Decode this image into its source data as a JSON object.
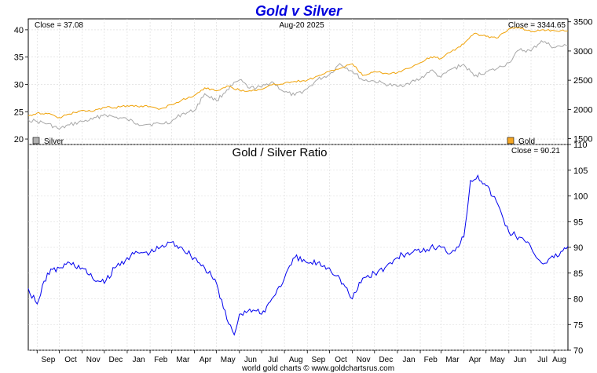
{
  "chart_data": [
    {
      "type": "line",
      "title": "Gold v Silver",
      "date_label": "Aug-20  2025",
      "left_close_label": "Close = 37.08",
      "right_close_label": "Close = 3344.65",
      "left_axis": {
        "ticks": [
          20,
          25,
          30,
          35,
          40
        ],
        "ylim": [
          19,
          42
        ]
      },
      "right_axis": {
        "ticks": [
          1500,
          2000,
          2500,
          3000,
          3500
        ],
        "ylim": [
          1400,
          3550
        ]
      },
      "grid": true,
      "legend": [
        {
          "name": "Silver",
          "color": "#b0b0b0",
          "position": "bottom-left"
        },
        {
          "name": "Gold",
          "color": "#f5a623",
          "position": "bottom-right"
        }
      ],
      "series": [
        {
          "name": "Silver",
          "axis": "left",
          "color": "#a8a8a8",
          "x": [
            "2023-08-20",
            "2023-09-01",
            "2023-09-15",
            "2023-10-01",
            "2023-10-15",
            "2023-11-01",
            "2023-11-15",
            "2023-12-01",
            "2023-12-15",
            "2024-01-01",
            "2024-01-15",
            "2024-02-01",
            "2024-02-15",
            "2024-03-01",
            "2024-03-15",
            "2024-04-01",
            "2024-04-15",
            "2024-05-01",
            "2024-05-15",
            "2024-06-01",
            "2024-06-15",
            "2024-07-01",
            "2024-07-15",
            "2024-08-01",
            "2024-08-15",
            "2024-09-01",
            "2024-09-15",
            "2024-10-01",
            "2024-10-15",
            "2024-11-01",
            "2024-11-15",
            "2024-12-01",
            "2024-12-15",
            "2025-01-01",
            "2025-01-15",
            "2025-02-01",
            "2025-02-15",
            "2025-03-01",
            "2025-03-15",
            "2025-04-01",
            "2025-04-15",
            "2025-05-01",
            "2025-05-15",
            "2025-06-01",
            "2025-06-15",
            "2025-07-01",
            "2025-07-15",
            "2025-08-01",
            "2025-08-20"
          ],
          "values": [
            23.5,
            23.2,
            22.8,
            21.8,
            22.6,
            23.2,
            23.6,
            24.5,
            24.0,
            23.6,
            22.8,
            22.7,
            22.8,
            23.2,
            24.6,
            25.2,
            28.3,
            27.0,
            29.0,
            30.8,
            29.3,
            29.5,
            30.5,
            28.6,
            28.0,
            29.2,
            30.9,
            31.8,
            33.8,
            32.4,
            30.8,
            30.6,
            30.1,
            29.6,
            30.2,
            31.0,
            32.6,
            31.3,
            32.8,
            33.6,
            31.5,
            32.3,
            32.8,
            34.0,
            36.3,
            36.1,
            38.0,
            36.8,
            37.08
          ]
        },
        {
          "name": "Gold",
          "axis": "right",
          "color": "#f0a30a",
          "x": [
            "2023-08-20",
            "2023-09-01",
            "2023-09-15",
            "2023-10-01",
            "2023-10-15",
            "2023-11-01",
            "2023-11-15",
            "2023-12-01",
            "2023-12-15",
            "2024-01-01",
            "2024-01-15",
            "2024-02-01",
            "2024-02-15",
            "2024-03-01",
            "2024-03-15",
            "2024-04-01",
            "2024-04-15",
            "2024-05-01",
            "2024-05-15",
            "2024-06-01",
            "2024-06-15",
            "2024-07-01",
            "2024-07-15",
            "2024-08-01",
            "2024-08-15",
            "2024-09-01",
            "2024-09-15",
            "2024-10-01",
            "2024-10-15",
            "2024-11-01",
            "2024-11-15",
            "2024-12-01",
            "2024-12-15",
            "2025-01-01",
            "2025-01-15",
            "2025-02-01",
            "2025-02-15",
            "2025-03-01",
            "2025-03-15",
            "2025-04-01",
            "2025-04-15",
            "2025-05-01",
            "2025-05-15",
            "2025-06-01",
            "2025-06-15",
            "2025-07-01",
            "2025-07-15",
            "2025-08-01",
            "2025-08-20"
          ],
          "values": [
            1890,
            1940,
            1925,
            1860,
            1920,
            1985,
            1965,
            2035,
            2030,
            2065,
            2050,
            2050,
            2010,
            2080,
            2160,
            2240,
            2370,
            2320,
            2400,
            2330,
            2320,
            2340,
            2420,
            2450,
            2480,
            2500,
            2570,
            2650,
            2700,
            2780,
            2580,
            2650,
            2620,
            2630,
            2700,
            2800,
            2900,
            2870,
            2990,
            3120,
            3300,
            3250,
            3220,
            3380,
            3400,
            3330,
            3360,
            3350,
            3344.65
          ]
        }
      ]
    },
    {
      "type": "line",
      "title": "Gold  /  Silver Ratio",
      "close_label": "Close = 90.21",
      "y_axis": {
        "ticks": [
          70,
          75,
          80,
          85,
          90,
          95,
          100,
          105,
          110
        ],
        "ylim": [
          70,
          110
        ]
      },
      "x_axis": {
        "ticks": [
          "Sep",
          "Oct",
          "Nov",
          "Dec",
          "Jan",
          "Feb",
          "Mar",
          "Apr",
          "May",
          "Jun",
          "Jul",
          "Aug",
          "Sep",
          "Oct",
          "Nov",
          "Dec",
          "Jan",
          "Feb",
          "Mar",
          "Apr",
          "May",
          "Jun",
          "Jul",
          "Aug"
        ]
      },
      "grid": true,
      "series": [
        {
          "name": "Gold / Silver Ratio",
          "color": "#0000ee",
          "x": [
            "2023-08-20",
            "2023-09-01",
            "2023-09-15",
            "2023-10-01",
            "2023-10-15",
            "2023-11-01",
            "2023-11-15",
            "2023-12-01",
            "2023-12-15",
            "2024-01-01",
            "2024-01-15",
            "2024-02-01",
            "2024-02-15",
            "2024-03-01",
            "2024-03-15",
            "2024-04-01",
            "2024-04-15",
            "2024-05-01",
            "2024-05-15",
            "2024-05-25",
            "2024-06-01",
            "2024-06-15",
            "2024-07-01",
            "2024-07-15",
            "2024-08-01",
            "2024-08-15",
            "2024-09-01",
            "2024-09-15",
            "2024-10-01",
            "2024-10-15",
            "2024-11-01",
            "2024-11-15",
            "2024-12-01",
            "2024-12-15",
            "2025-01-01",
            "2025-01-15",
            "2025-02-01",
            "2025-02-15",
            "2025-03-01",
            "2025-03-15",
            "2025-04-01",
            "2025-04-10",
            "2025-04-20",
            "2025-05-01",
            "2025-05-15",
            "2025-06-01",
            "2025-06-15",
            "2025-07-01",
            "2025-07-15",
            "2025-08-01",
            "2025-08-20"
          ],
          "values": [
            82,
            79,
            85,
            86,
            87,
            86,
            84,
            83,
            86,
            88,
            89,
            89,
            90,
            91,
            90,
            88,
            86,
            83,
            76,
            73,
            77,
            78,
            77,
            80,
            84,
            88,
            87,
            87,
            86,
            84,
            80,
            84,
            85,
            86,
            88,
            89,
            89,
            90,
            90,
            89,
            92,
            103,
            104,
            102,
            99,
            93,
            92,
            90,
            87,
            88,
            90.21
          ]
        }
      ]
    }
  ],
  "footer": "world gold charts © www.goldchartsrus.com"
}
